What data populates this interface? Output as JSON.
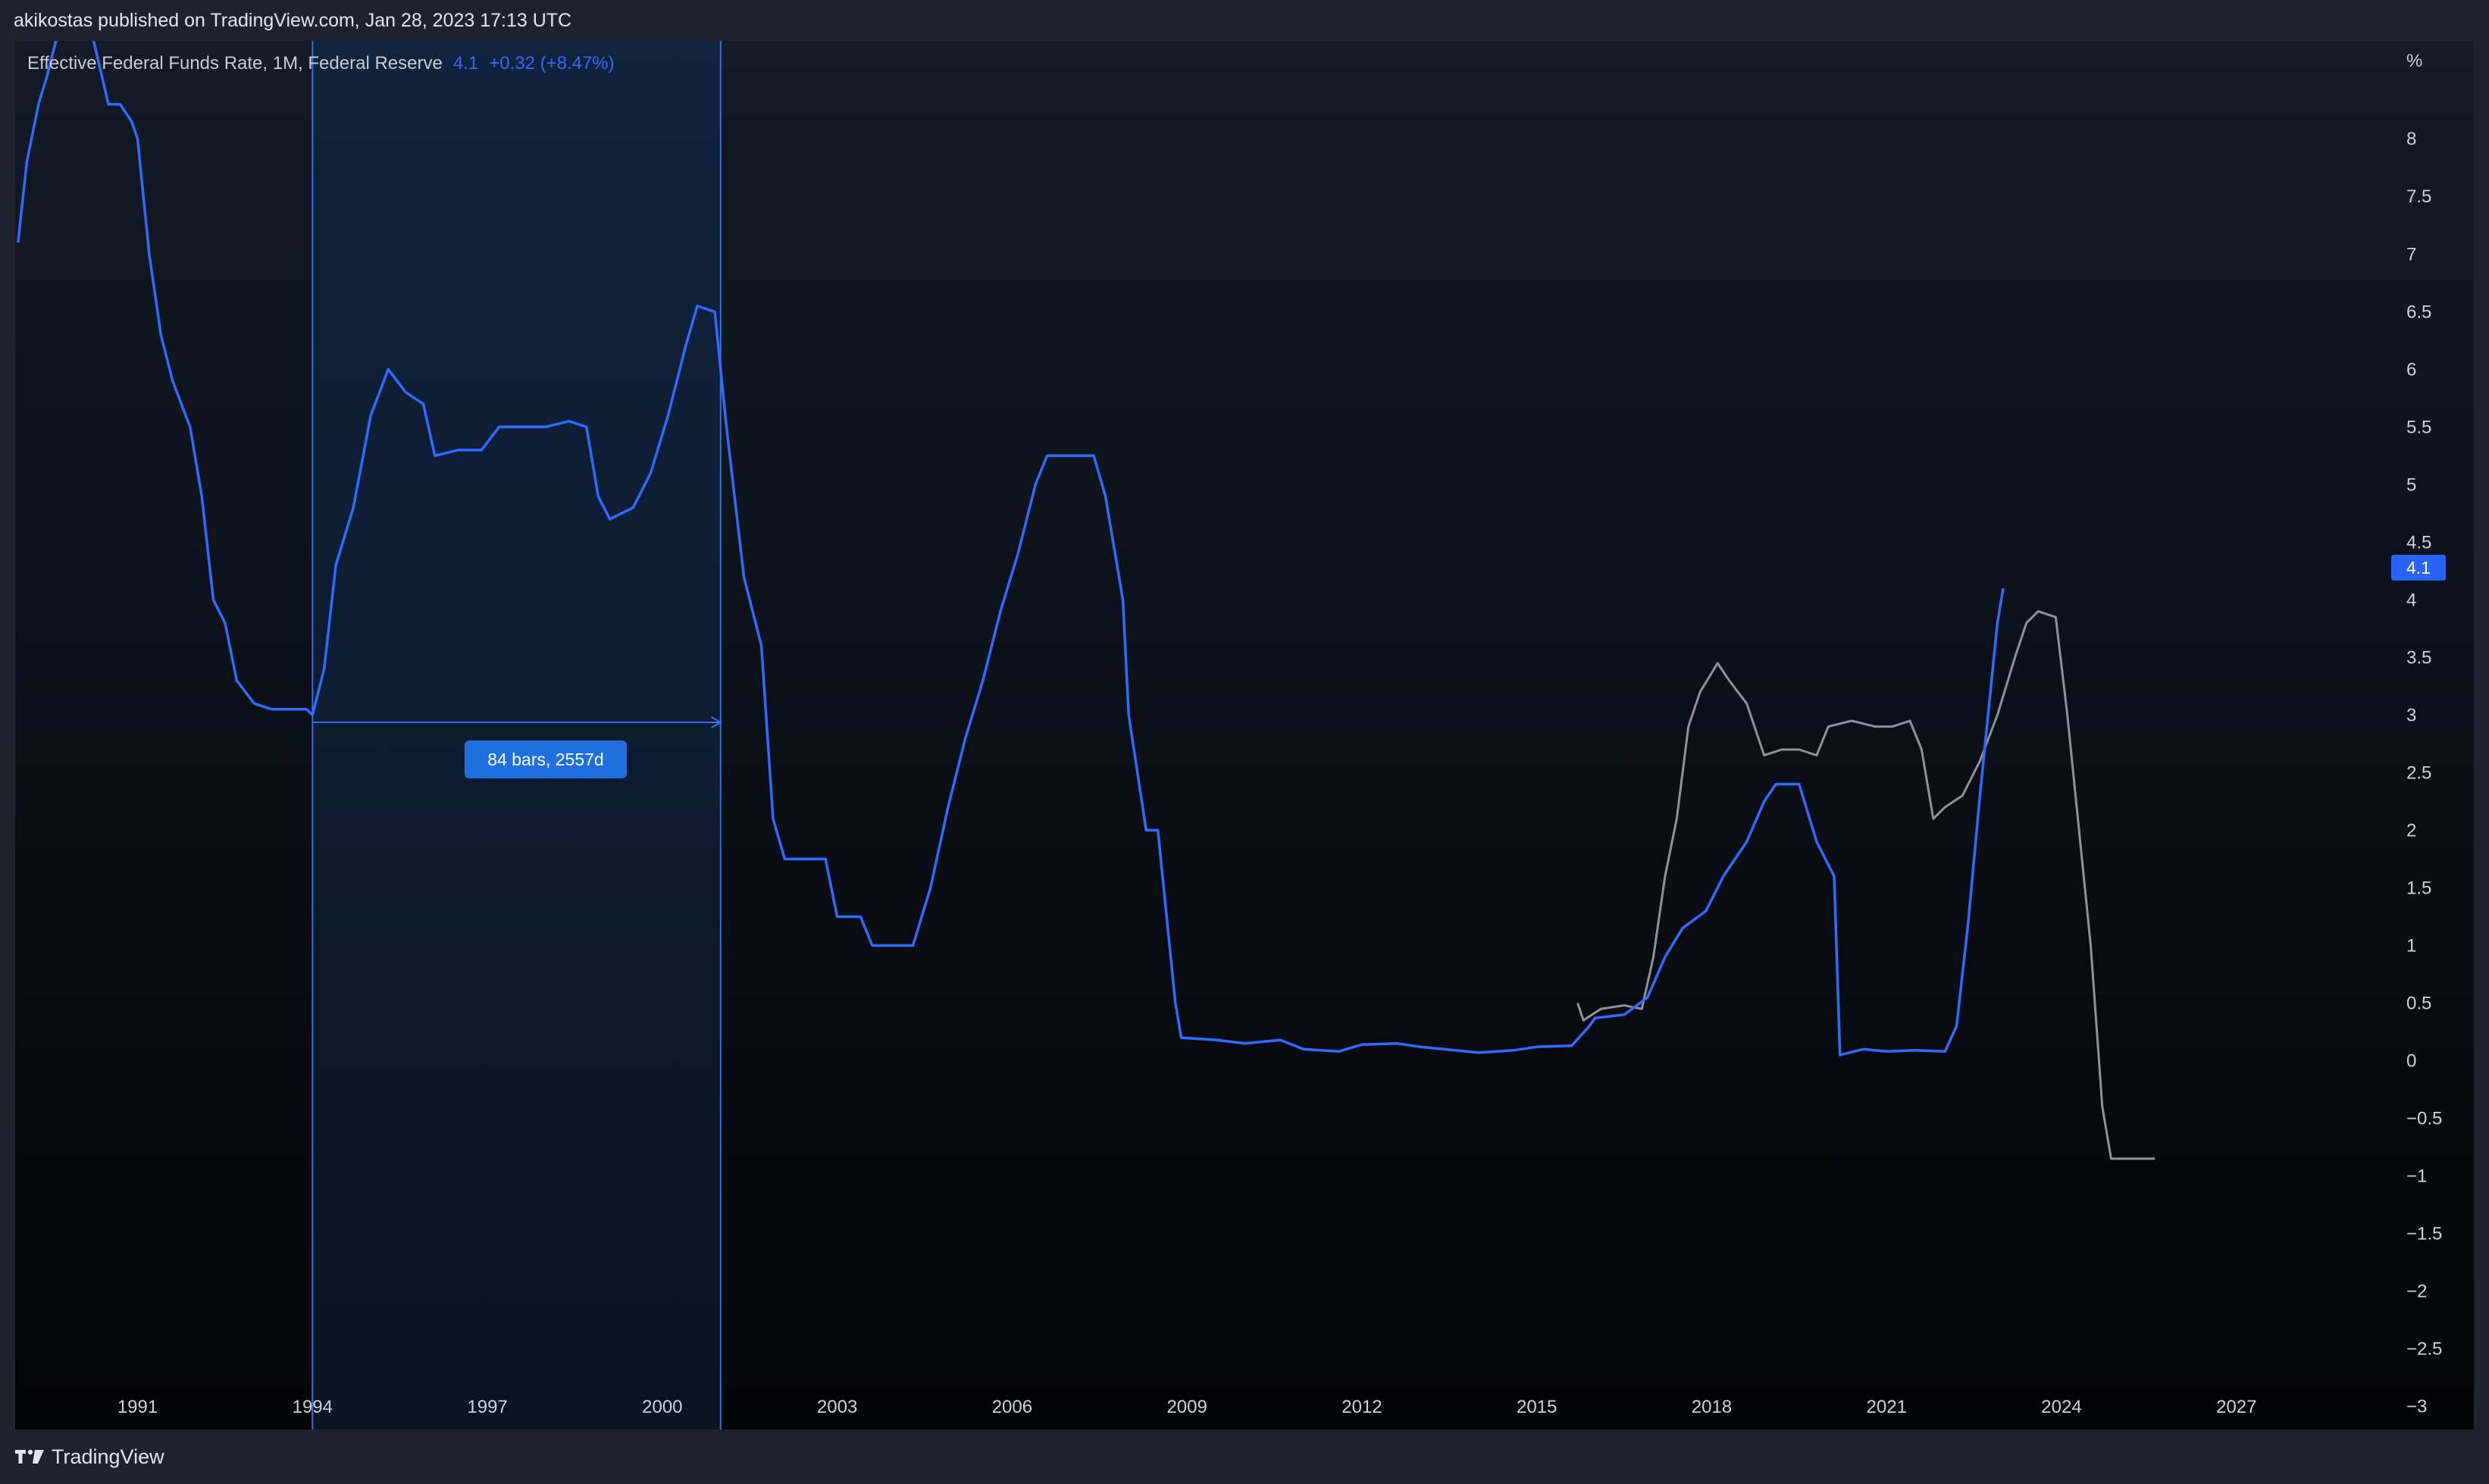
{
  "header": {
    "published": "akikostas published on TradingView.com, Jan 28, 2023 17:13 UTC"
  },
  "legend": {
    "symbol": "Effective Federal Funds Rate, 1M, Federal Reserve",
    "last": "4.1",
    "change": "+0.32 (+8.47%)"
  },
  "measure": {
    "label": "84 bars, 2557d"
  },
  "price_scale": {
    "unit": "%",
    "last_value_tag": "4.1"
  },
  "footer": {
    "brand": "TradingView"
  },
  "colors": {
    "primary_series": "#2f6bff",
    "overlay_series": "#8f9299",
    "measure_fill": "#0f1f36",
    "measure_line": "#2a73e8",
    "axis_text": "#cfd2d8"
  },
  "chart_data": {
    "type": "line",
    "title": "Effective Federal Funds Rate, 1M, Federal Reserve",
    "ylabel": "%",
    "xlabel": "",
    "xlim": [
      1988.9,
      2029.2
    ],
    "ylim": [
      -3.2,
      8.85
    ],
    "x_ticks": [
      1991,
      1994,
      1997,
      2000,
      2003,
      2006,
      2009,
      2012,
      2015,
      2018,
      2021,
      2024,
      2027
    ],
    "y_ticks": [
      -3,
      -2.5,
      -2,
      -1.5,
      -1,
      -0.5,
      0,
      0.5,
      1,
      1.5,
      2,
      2.5,
      3,
      3.5,
      4,
      4.5,
      5,
      5.5,
      6,
      6.5,
      7,
      7.5,
      8
    ],
    "y_tick_labels": [
      "−3",
      "−2.5",
      "−2",
      "−1.5",
      "−1",
      "−0.5",
      "0",
      "0.5",
      "1",
      "1.5",
      "2",
      "2.5",
      "3",
      "3.5",
      "4",
      "4.5",
      "5",
      "5.5",
      "6",
      "6.5",
      "7",
      "7.5",
      "8"
    ],
    "grid": false,
    "series": [
      {
        "name": "Effective Federal Funds Rate",
        "points": [
          [
            1988.95,
            7.1
          ],
          [
            1989.1,
            7.8
          ],
          [
            1989.3,
            8.3
          ],
          [
            1989.45,
            8.55
          ],
          [
            1989.6,
            8.85
          ],
          [
            1990.0,
            9.0
          ],
          [
            1990.2,
            8.95
          ],
          [
            1990.5,
            8.3
          ],
          [
            1990.7,
            8.3
          ],
          [
            1990.9,
            8.15
          ],
          [
            1991.0,
            8.0
          ],
          [
            1991.2,
            7.0
          ],
          [
            1991.4,
            6.3
          ],
          [
            1991.6,
            5.9
          ],
          [
            1991.9,
            5.5
          ],
          [
            1992.1,
            4.9
          ],
          [
            1992.3,
            4.0
          ],
          [
            1992.5,
            3.8
          ],
          [
            1992.7,
            3.3
          ],
          [
            1993.0,
            3.1
          ],
          [
            1993.3,
            3.05
          ],
          [
            1993.6,
            3.05
          ],
          [
            1993.9,
            3.05
          ],
          [
            1994.0,
            3.0
          ],
          [
            1994.2,
            3.4
          ],
          [
            1994.4,
            4.3
          ],
          [
            1994.7,
            4.8
          ],
          [
            1995.0,
            5.6
          ],
          [
            1995.3,
            6.0
          ],
          [
            1995.6,
            5.8
          ],
          [
            1995.9,
            5.7
          ],
          [
            1996.1,
            5.25
          ],
          [
            1996.5,
            5.3
          ],
          [
            1996.9,
            5.3
          ],
          [
            1997.2,
            5.5
          ],
          [
            1997.6,
            5.5
          ],
          [
            1998.0,
            5.5
          ],
          [
            1998.4,
            5.55
          ],
          [
            1998.7,
            5.5
          ],
          [
            1998.9,
            4.9
          ],
          [
            1999.1,
            4.7
          ],
          [
            1999.5,
            4.8
          ],
          [
            1999.8,
            5.1
          ],
          [
            2000.1,
            5.6
          ],
          [
            2000.4,
            6.2
          ],
          [
            2000.6,
            6.55
          ],
          [
            2000.9,
            6.5
          ],
          [
            2001.1,
            5.5
          ],
          [
            2001.4,
            4.2
          ],
          [
            2001.7,
            3.6
          ],
          [
            2001.9,
            2.1
          ],
          [
            2002.1,
            1.75
          ],
          [
            2002.5,
            1.75
          ],
          [
            2002.8,
            1.75
          ],
          [
            2003.0,
            1.25
          ],
          [
            2003.4,
            1.25
          ],
          [
            2003.6,
            1.0
          ],
          [
            2004.0,
            1.0
          ],
          [
            2004.3,
            1.0
          ],
          [
            2004.6,
            1.5
          ],
          [
            2004.9,
            2.2
          ],
          [
            2005.2,
            2.8
          ],
          [
            2005.5,
            3.3
          ],
          [
            2005.8,
            3.9
          ],
          [
            2006.1,
            4.4
          ],
          [
            2006.4,
            5.0
          ],
          [
            2006.6,
            5.25
          ],
          [
            2007.0,
            5.25
          ],
          [
            2007.4,
            5.25
          ],
          [
            2007.6,
            4.9
          ],
          [
            2007.9,
            4.0
          ],
          [
            2008.0,
            3.0
          ],
          [
            2008.3,
            2.0
          ],
          [
            2008.5,
            2.0
          ],
          [
            2008.8,
            0.5
          ],
          [
            2008.9,
            0.2
          ],
          [
            2009.5,
            0.18
          ],
          [
            2010.0,
            0.15
          ],
          [
            2010.6,
            0.18
          ],
          [
            2011.0,
            0.1
          ],
          [
            2011.6,
            0.08
          ],
          [
            2012.0,
            0.14
          ],
          [
            2012.6,
            0.15
          ],
          [
            2013.0,
            0.12
          ],
          [
            2013.6,
            0.09
          ],
          [
            2014.0,
            0.07
          ],
          [
            2014.6,
            0.09
          ],
          [
            2015.0,
            0.12
          ],
          [
            2015.6,
            0.13
          ],
          [
            2015.9,
            0.3
          ],
          [
            2016.0,
            0.37
          ],
          [
            2016.5,
            0.4
          ],
          [
            2016.9,
            0.55
          ],
          [
            2017.2,
            0.9
          ],
          [
            2017.5,
            1.15
          ],
          [
            2017.9,
            1.3
          ],
          [
            2018.2,
            1.6
          ],
          [
            2018.6,
            1.9
          ],
          [
            2018.9,
            2.25
          ],
          [
            2019.1,
            2.4
          ],
          [
            2019.5,
            2.4
          ],
          [
            2019.8,
            1.9
          ],
          [
            2020.1,
            1.6
          ],
          [
            2020.2,
            0.05
          ],
          [
            2020.6,
            0.1
          ],
          [
            2021.0,
            0.08
          ],
          [
            2021.5,
            0.09
          ],
          [
            2022.0,
            0.08
          ],
          [
            2022.2,
            0.3
          ],
          [
            2022.4,
            1.2
          ],
          [
            2022.6,
            2.3
          ],
          [
            2022.9,
            3.8
          ],
          [
            2023.0,
            4.1
          ]
        ]
      },
      {
        "name": "",
        "points": [
          [
            2015.7,
            0.5
          ],
          [
            2015.8,
            0.35
          ],
          [
            2016.1,
            0.45
          ],
          [
            2016.5,
            0.48
          ],
          [
            2016.8,
            0.45
          ],
          [
            2017.0,
            0.9
          ],
          [
            2017.2,
            1.6
          ],
          [
            2017.4,
            2.1
          ],
          [
            2017.6,
            2.9
          ],
          [
            2017.8,
            3.2
          ],
          [
            2018.1,
            3.45
          ],
          [
            2018.3,
            3.3
          ],
          [
            2018.6,
            3.1
          ],
          [
            2018.9,
            2.65
          ],
          [
            2019.2,
            2.7
          ],
          [
            2019.5,
            2.7
          ],
          [
            2019.8,
            2.65
          ],
          [
            2020.0,
            2.9
          ],
          [
            2020.4,
            2.95
          ],
          [
            2020.8,
            2.9
          ],
          [
            2021.1,
            2.9
          ],
          [
            2021.4,
            2.95
          ],
          [
            2021.6,
            2.7
          ],
          [
            2021.8,
            2.1
          ],
          [
            2022.0,
            2.2
          ],
          [
            2022.3,
            2.3
          ],
          [
            2022.6,
            2.6
          ],
          [
            2022.9,
            3.0
          ],
          [
            2023.2,
            3.5
          ],
          [
            2023.4,
            3.8
          ],
          [
            2023.6,
            3.9
          ],
          [
            2023.9,
            3.85
          ],
          [
            2024.1,
            3.0
          ],
          [
            2024.3,
            2.0
          ],
          [
            2024.5,
            1.0
          ],
          [
            2024.7,
            -0.4
          ],
          [
            2024.85,
            -0.85
          ],
          [
            2025.2,
            -0.85
          ],
          [
            2025.6,
            -0.85
          ]
        ]
      }
    ],
    "annotations": [
      {
        "type": "date_range",
        "x_start": 1994.0,
        "x_end": 2001.0,
        "label": "84 bars, 2557d"
      }
    ]
  }
}
